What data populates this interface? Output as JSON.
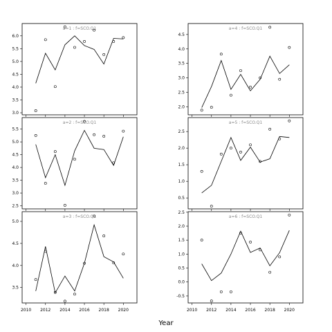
{
  "xlabel": "Year",
  "chart_data": [
    {
      "type": "line",
      "panel_label": "a=1 : f=SCO.Q1",
      "x": [
        2011,
        2012,
        2013,
        2014,
        2015,
        2016,
        2017,
        2018,
        2019,
        2020
      ],
      "series": [
        {
          "style": "line",
          "values": [
            4.15,
            5.32,
            4.67,
            5.65,
            6.0,
            5.62,
            5.47,
            4.9,
            5.9,
            5.88
          ]
        },
        {
          "style": "points",
          "values": [
            3.08,
            5.85,
            4.02,
            6.35,
            5.55,
            5.78,
            6.22,
            5.27,
            5.78,
            5.93
          ]
        }
      ],
      "ylim": [
        2.92,
        6.48
      ],
      "yticks": [
        3.0,
        3.5,
        4.0,
        4.5,
        5.0,
        5.5,
        6.0
      ],
      "ytick_labels": [
        "3.0",
        "3.5",
        "4.0",
        "4.5",
        "5.0",
        "5.5",
        "6.0"
      ]
    },
    {
      "type": "line",
      "panel_label": "a=4 : f=SCO.Q1",
      "x": [
        2011,
        2012,
        2013,
        2014,
        2015,
        2016,
        2017,
        2018,
        2019,
        2020
      ],
      "series": [
        {
          "style": "line",
          "values": [
            1.97,
            2.7,
            3.6,
            2.6,
            3.12,
            2.55,
            2.95,
            3.75,
            3.15,
            3.45
          ]
        },
        {
          "style": "points",
          "values": [
            1.88,
            1.98,
            3.82,
            2.4,
            3.25,
            2.68,
            3.0,
            4.75,
            2.95,
            4.05
          ]
        }
      ],
      "ylim": [
        1.72,
        4.88
      ],
      "yticks": [
        2.0,
        2.5,
        3.0,
        3.5,
        4.0,
        4.5
      ],
      "ytick_labels": [
        "2.0",
        "2.5",
        "3.0",
        "3.5",
        "4.0",
        "4.5"
      ]
    },
    {
      "type": "line",
      "panel_label": "a=2 : f=SCO.Q1",
      "x": [
        2011,
        2012,
        2013,
        2014,
        2015,
        2016,
        2017,
        2018,
        2019,
        2020
      ],
      "series": [
        {
          "style": "line",
          "values": [
            4.9,
            3.6,
            4.5,
            3.3,
            4.65,
            5.45,
            4.75,
            4.7,
            4.08,
            5.2
          ]
        },
        {
          "style": "points",
          "values": [
            5.25,
            3.38,
            4.62,
            2.52,
            4.32,
            5.8,
            5.28,
            5.22,
            4.18,
            5.42
          ]
        }
      ],
      "ylim": [
        2.38,
        5.95
      ],
      "yticks": [
        2.5,
        3.0,
        3.5,
        4.0,
        4.5,
        5.0,
        5.5
      ],
      "ytick_labels": [
        "2.5",
        "3.0",
        "3.5",
        "4.0",
        "4.5",
        "5.0",
        "5.5"
      ]
    },
    {
      "type": "line",
      "panel_label": "a=5 : f=SCO.Q1",
      "x": [
        2011,
        2012,
        2013,
        2014,
        2015,
        2016,
        2017,
        2018,
        2019,
        2020
      ],
      "series": [
        {
          "style": "line",
          "values": [
            0.65,
            0.88,
            1.6,
            2.32,
            1.63,
            2.03,
            1.58,
            1.68,
            2.35,
            2.32
          ]
        },
        {
          "style": "points",
          "values": [
            1.3,
            0.25,
            1.82,
            2.0,
            1.88,
            2.1,
            1.6,
            2.57,
            2.28,
            2.82
          ]
        }
      ],
      "ylim": [
        0.17,
        2.92
      ],
      "yticks": [
        0.5,
        1.0,
        1.5,
        2.0,
        2.5
      ],
      "ytick_labels": [
        "0.5",
        "1.0",
        "1.5",
        "2.0",
        "2.5"
      ]
    },
    {
      "type": "line",
      "panel_label": "a=3 : f=SCO.Q1",
      "x": [
        2011,
        2012,
        2013,
        2014,
        2015,
        2016,
        2017,
        2018,
        2019,
        2020
      ],
      "series": [
        {
          "style": "line",
          "values": [
            3.42,
            4.43,
            3.38,
            3.76,
            3.42,
            4.05,
            4.92,
            4.2,
            4.08,
            3.71
          ]
        },
        {
          "style": "points",
          "values": [
            3.68,
            4.32,
            3.39,
            3.19,
            3.35,
            4.05,
            5.12,
            4.67,
            4.06,
            4.26
          ]
        }
      ],
      "ylim": [
        3.15,
        5.22
      ],
      "yticks": [
        3.5,
        4.0,
        4.5,
        5.0
      ],
      "ytick_labels": [
        "3.5",
        "4.0",
        "4.5",
        "5.0"
      ]
    },
    {
      "type": "line",
      "panel_label": "a=6 : f=SCO.Q1",
      "x": [
        2011,
        2012,
        2013,
        2014,
        2015,
        2016,
        2017,
        2018,
        2019,
        2020
      ],
      "series": [
        {
          "style": "line",
          "values": [
            0.65,
            0.05,
            0.32,
            1.0,
            1.82,
            1.06,
            1.22,
            0.58,
            1.05,
            1.85
          ]
        },
        {
          "style": "points",
          "values": [
            1.5,
            -0.68,
            -0.35,
            -0.35,
            1.75,
            1.43,
            1.15,
            0.35,
            0.9,
            2.4
          ]
        }
      ],
      "ylim": [
        -0.75,
        2.52
      ],
      "yticks": [
        -0.5,
        0.0,
        0.5,
        1.0,
        1.5,
        2.0,
        2.5
      ],
      "ytick_labels": [
        "-0.5",
        "0.0",
        "0.5",
        "1.0",
        "1.5",
        "2.0",
        "2.5"
      ]
    }
  ],
  "xaxis": {
    "xlim": [
      2009.6,
      2021.4
    ],
    "ticks": [
      2010,
      2012,
      2014,
      2016,
      2018,
      2020
    ],
    "tick_labels": [
      "2010",
      "2012",
      "2014",
      "2016",
      "2018",
      "2020"
    ]
  }
}
